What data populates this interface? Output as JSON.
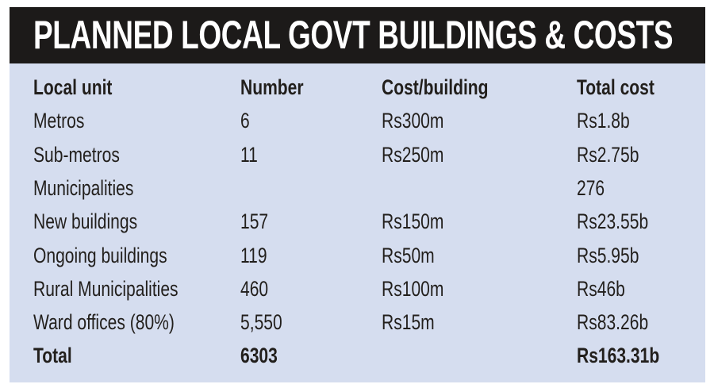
{
  "title": "PLANNED LOCAL GOVT BUILDINGS & COSTS",
  "colors": {
    "header_bg": "#1c1a19",
    "panel_bg": "#d5ddef",
    "text": "#221f1c"
  },
  "chart_data": {
    "type": "table",
    "title": "PLANNED LOCAL GOVT BUILDINGS & COSTS",
    "columns": [
      "Local unit",
      "Number",
      "Cost/building",
      "Total cost"
    ],
    "rows": [
      [
        "Metros",
        "6",
        "Rs300m",
        "Rs1.8b"
      ],
      [
        "Sub-metros",
        "11",
        "Rs250m",
        "Rs2.75b"
      ],
      [
        "Municipalities",
        "",
        "",
        "276"
      ],
      [
        "New buildings",
        "157",
        "Rs150m",
        "Rs23.55b"
      ],
      [
        "Ongoing buildings",
        "119",
        "Rs50m",
        "Rs5.95b"
      ],
      [
        "Rural Municipalities",
        "460",
        "Rs100m",
        "Rs46b"
      ],
      [
        "Ward offices (80%)",
        "5,550",
        "Rs15m",
        "Rs83.26b"
      ],
      [
        "Total",
        "6303",
        "",
        "Rs163.31b"
      ]
    ]
  }
}
